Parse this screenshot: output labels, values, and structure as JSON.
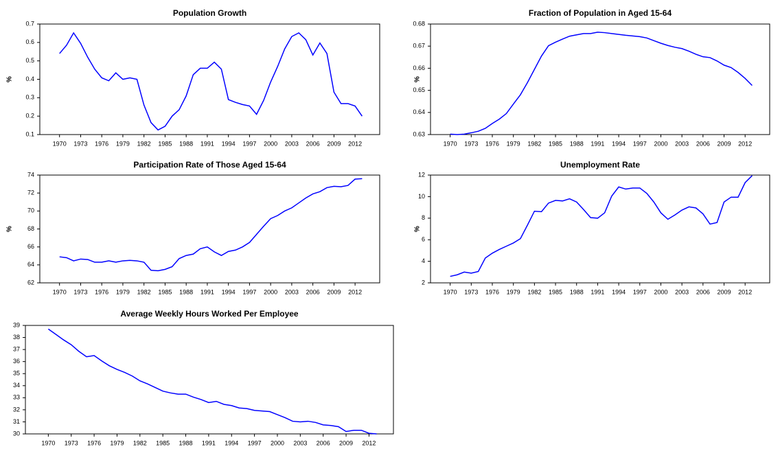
{
  "chart_data": [
    {
      "type": "line",
      "title": "Population Growth",
      "y_label": "%",
      "color": "#0000ff",
      "x": [
        1970,
        1971,
        1972,
        1973,
        1974,
        1975,
        1976,
        1977,
        1978,
        1979,
        1980,
        1981,
        1982,
        1983,
        1984,
        1985,
        1986,
        1987,
        1988,
        1989,
        1990,
        1991,
        1992,
        1993,
        1994,
        1995,
        1996,
        1997,
        1998,
        1999,
        2000,
        2001,
        2002,
        2003,
        2004,
        2005,
        2006,
        2007,
        2008,
        2009,
        2010,
        2011,
        2012,
        2013
      ],
      "values": [
        0.54,
        0.585,
        0.652,
        0.595,
        0.52,
        0.455,
        0.408,
        0.392,
        0.435,
        0.4,
        0.408,
        0.4,
        0.26,
        0.165,
        0.125,
        0.145,
        0.2,
        0.235,
        0.31,
        0.425,
        0.46,
        0.46,
        0.493,
        0.455,
        0.29,
        0.275,
        0.263,
        0.255,
        0.21,
        0.285,
        0.385,
        0.47,
        0.565,
        0.632,
        0.652,
        0.615,
        0.532,
        0.597,
        0.54,
        0.33,
        0.268,
        0.268,
        0.255,
        0.2
      ],
      "xlim": [
        1967.2,
        2015.5
      ],
      "xticks": [
        1970,
        1973,
        1976,
        1979,
        1982,
        1985,
        1988,
        1991,
        1994,
        1997,
        2000,
        2003,
        2006,
        2009,
        2012
      ],
      "ylim": [
        0.1,
        0.7
      ],
      "yticks": [
        0.1,
        0.2,
        0.3,
        0.4,
        0.5,
        0.6,
        0.7
      ]
    },
    {
      "type": "line",
      "title": "Fraction of Population in Aged 15-64",
      "y_label": "%",
      "color": "#0000ff",
      "x": [
        1970,
        1971,
        1972,
        1973,
        1974,
        1975,
        1976,
        1977,
        1978,
        1979,
        1980,
        1981,
        1982,
        1983,
        1984,
        1985,
        1986,
        1987,
        1988,
        1989,
        1990,
        1991,
        1992,
        1993,
        1994,
        1995,
        1996,
        1997,
        1998,
        1999,
        2000,
        2001,
        2002,
        2003,
        2004,
        2005,
        2006,
        2007,
        2008,
        2009,
        2010,
        2011,
        2012,
        2013
      ],
      "values": [
        0.6302,
        0.63,
        0.6302,
        0.6308,
        0.6315,
        0.6328,
        0.635,
        0.637,
        0.6395,
        0.6438,
        0.648,
        0.6535,
        0.6595,
        0.6655,
        0.6702,
        0.6718,
        0.6732,
        0.6745,
        0.6751,
        0.6757,
        0.6757,
        0.6763,
        0.6761,
        0.6757,
        0.6753,
        0.6749,
        0.6746,
        0.6743,
        0.6737,
        0.6725,
        0.6713,
        0.6703,
        0.6695,
        0.6689,
        0.6677,
        0.6663,
        0.6652,
        0.6648,
        0.6633,
        0.6614,
        0.6603,
        0.6581,
        0.6554,
        0.6522
      ],
      "xlim": [
        1967.2,
        2015.5
      ],
      "xticks": [
        1970,
        1973,
        1976,
        1979,
        1982,
        1985,
        1988,
        1991,
        1994,
        1997,
        2000,
        2003,
        2006,
        2009,
        2012
      ],
      "ylim": [
        0.63,
        0.68
      ],
      "yticks": [
        0.63,
        0.64,
        0.65,
        0.66,
        0.67,
        0.68
      ]
    },
    {
      "type": "line",
      "title": "Participation Rate of Those Aged 15-64",
      "y_label": "%",
      "color": "#0000ff",
      "x": [
        1970,
        1971,
        1972,
        1973,
        1974,
        1975,
        1976,
        1977,
        1978,
        1979,
        1980,
        1981,
        1982,
        1983,
        1984,
        1985,
        1986,
        1987,
        1988,
        1989,
        1990,
        1991,
        1992,
        1993,
        1994,
        1995,
        1996,
        1997,
        1998,
        1999,
        2000,
        2001,
        2002,
        2003,
        2004,
        2005,
        2006,
        2007,
        2008,
        2009,
        2010,
        2011,
        2012,
        2013
      ],
      "values": [
        64.9,
        64.8,
        64.45,
        64.65,
        64.6,
        64.3,
        64.3,
        64.45,
        64.3,
        64.45,
        64.5,
        64.45,
        64.3,
        63.4,
        63.35,
        63.5,
        63.8,
        64.7,
        65.05,
        65.2,
        65.8,
        66.0,
        65.45,
        65.05,
        65.5,
        65.65,
        66.0,
        66.5,
        67.4,
        68.3,
        69.15,
        69.5,
        70.0,
        70.35,
        70.9,
        71.45,
        71.9,
        72.15,
        72.6,
        72.75,
        72.7,
        72.85,
        73.55,
        73.6
      ],
      "xlim": [
        1967.2,
        2015.5
      ],
      "xticks": [
        1970,
        1973,
        1976,
        1979,
        1982,
        1985,
        1988,
        1991,
        1994,
        1997,
        2000,
        2003,
        2006,
        2009,
        2012
      ],
      "ylim": [
        62,
        74
      ],
      "yticks": [
        62,
        64,
        66,
        68,
        70,
        72,
        74
      ]
    },
    {
      "type": "line",
      "title": "Unemployment Rate",
      "y_label": "%",
      "color": "#0000ff",
      "x": [
        1970,
        1971,
        1972,
        1973,
        1974,
        1975,
        1976,
        1977,
        1978,
        1979,
        1980,
        1981,
        1982,
        1983,
        1984,
        1985,
        1986,
        1987,
        1988,
        1989,
        1990,
        1991,
        1992,
        1993,
        1994,
        1995,
        1996,
        1997,
        1998,
        1999,
        2000,
        2001,
        2002,
        2003,
        2004,
        2005,
        2006,
        2007,
        2008,
        2009,
        2010,
        2011,
        2012,
        2013
      ],
      "values": [
        2.6,
        2.75,
        3.0,
        2.9,
        3.05,
        4.3,
        4.75,
        5.1,
        5.4,
        5.7,
        6.1,
        7.35,
        8.65,
        8.6,
        9.4,
        9.65,
        9.6,
        9.8,
        9.5,
        8.8,
        8.05,
        8.0,
        8.5,
        10.05,
        10.9,
        10.7,
        10.8,
        10.8,
        10.3,
        9.5,
        8.5,
        7.9,
        8.3,
        8.75,
        9.05,
        8.95,
        8.4,
        7.45,
        7.6,
        9.5,
        9.95,
        9.95,
        11.3,
        11.95
      ],
      "xlim": [
        1967.2,
        2015.5
      ],
      "xticks": [
        1970,
        1973,
        1976,
        1979,
        1982,
        1985,
        1988,
        1991,
        1994,
        1997,
        2000,
        2003,
        2006,
        2009,
        2012
      ],
      "ylim": [
        2,
        12
      ],
      "yticks": [
        2,
        4,
        6,
        8,
        10,
        12
      ]
    },
    {
      "type": "line",
      "title": "Average Weekly Hours Worked Per Employee",
      "color": "#0000ff",
      "x": [
        1970,
        1971,
        1972,
        1973,
        1974,
        1975,
        1976,
        1977,
        1978,
        1979,
        1980,
        1981,
        1982,
        1983,
        1984,
        1985,
        1986,
        1987,
        1988,
        1989,
        1990,
        1991,
        1992,
        1993,
        1994,
        1995,
        1996,
        1997,
        1998,
        1999,
        2000,
        2001,
        2002,
        2003,
        2004,
        2005,
        2006,
        2007,
        2008,
        2009,
        2010,
        2011,
        2012,
        2013
      ],
      "values": [
        38.7,
        38.25,
        37.8,
        37.4,
        36.85,
        36.4,
        36.5,
        36.05,
        35.65,
        35.35,
        35.1,
        34.8,
        34.4,
        34.15,
        33.85,
        33.55,
        33.4,
        33.3,
        33.3,
        33.05,
        32.85,
        32.6,
        32.7,
        32.45,
        32.35,
        32.15,
        32.1,
        31.95,
        31.9,
        31.85,
        31.6,
        31.35,
        31.05,
        31.0,
        31.05,
        30.95,
        30.75,
        30.7,
        30.6,
        30.2,
        30.3,
        30.3,
        30.05,
        30.0
      ],
      "xlim": [
        1967.0,
        2015.2
      ],
      "xticks": [
        1970,
        1973,
        1976,
        1979,
        1982,
        1985,
        1988,
        1991,
        1994,
        1997,
        2000,
        2003,
        2006,
        2009,
        2012
      ],
      "ylim": [
        30,
        39
      ],
      "yticks": [
        30,
        31,
        32,
        33,
        34,
        35,
        36,
        37,
        38,
        39
      ]
    }
  ]
}
